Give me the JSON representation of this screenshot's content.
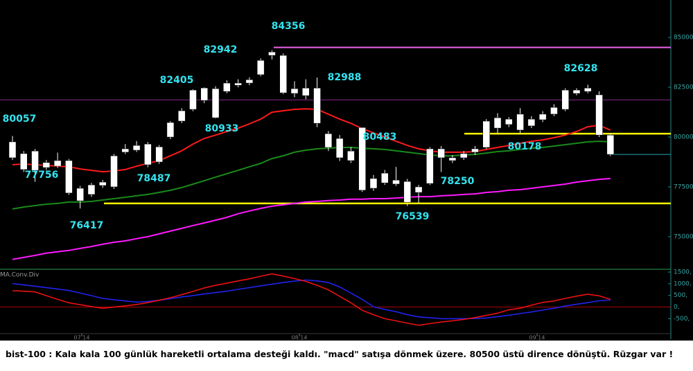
{
  "chart_data": [
    {
      "type": "candlestick",
      "open": [
        78960,
        79170,
        78330,
        78470,
        78820,
        78820,
        77430,
        77120,
        77570,
        77500,
        79240,
        79340,
        79650,
        78750,
        80000,
        80800,
        81390,
        81840,
        82430,
        82290,
        82600,
        82710,
        83130,
        84100,
        84100,
        82430,
        82080,
        82460,
        80170,
        79930,
        79300,
        77330,
        77430,
        78190,
        77640,
        77770,
        77220,
        77670,
        79410,
        78820,
        78960,
        79240,
        79480,
        80450,
        80630,
        80350,
        80560,
        80870,
        81150,
        81390,
        82190,
        82290,
        82120,
        80100
      ],
      "high": [
        80057,
        79300,
        79400,
        78850,
        79220,
        78900,
        77550,
        77700,
        77850,
        79150,
        79650,
        79800,
        79750,
        79600,
        80800,
        81450,
        82405,
        82500,
        82550,
        82850,
        82900,
        83000,
        83950,
        84356,
        84200,
        82800,
        82900,
        82988,
        80300,
        80100,
        79500,
        80483,
        78100,
        78350,
        78500,
        77900,
        77600,
        79500,
        79550,
        79100,
        79300,
        79550,
        80900,
        81200,
        81000,
        81450,
        81050,
        81300,
        81650,
        82450,
        82450,
        82628,
        82300,
        80200
      ],
      "low": [
        78850,
        78250,
        77756,
        78350,
        78450,
        77100,
        76417,
        77000,
        77450,
        77400,
        79150,
        79250,
        78487,
        78650,
        79900,
        80700,
        81300,
        81700,
        80933,
        82200,
        82500,
        82600,
        83050,
        83900,
        82150,
        82000,
        81900,
        80500,
        79300,
        78800,
        78700,
        77250,
        77300,
        77600,
        77550,
        76539,
        76700,
        77600,
        78250,
        78700,
        78850,
        79100,
        79400,
        80178,
        80500,
        80178,
        80450,
        80750,
        81050,
        81300,
        82100,
        82200,
        80000,
        79050
      ],
      "close": [
        79760,
        78370,
        79300,
        78720,
        78540,
        77190,
        76800,
        77600,
        77740,
        79060,
        79410,
        79580,
        78610,
        79510,
        80730,
        81320,
        82360,
        82465,
        80970,
        82710,
        82710,
        82880,
        83850,
        84270,
        82220,
        82190,
        82460,
        80690,
        79480,
        78960,
        78820,
        80480,
        77920,
        77700,
        77840,
        76730,
        77500,
        79410,
        78960,
        78960,
        79170,
        79410,
        80800,
        80970,
        80900,
        81150,
        80900,
        81150,
        81490,
        82360,
        82360,
        82460,
        80100,
        79130
      ],
      "candle_color": "#ffffff",
      "ylim": [
        73400,
        86880
      ],
      "yticks": [
        {
          "value": 75000,
          "label": "75000,"
        },
        {
          "value": 77500,
          "label": "77500,"
        },
        {
          "value": 80000,
          "label": "80000,"
        },
        {
          "value": 82500,
          "label": "82500,"
        },
        {
          "value": 85000,
          "label": "85000,"
        }
      ],
      "series": [
        {
          "color": "#ff1a1a",
          "values": [
            78610,
            78650,
            78610,
            78580,
            78540,
            78510,
            78400,
            78330,
            78260,
            78300,
            78370,
            78540,
            78680,
            78820,
            79060,
            79310,
            79650,
            79930,
            80100,
            80280,
            80450,
            80660,
            80900,
            81250,
            81320,
            81390,
            81420,
            81390,
            81150,
            80900,
            80690,
            80420,
            80210,
            80000,
            79790,
            79580,
            79410,
            79310,
            79240,
            79240,
            79240,
            79270,
            79380,
            79480,
            79580,
            79690,
            79790,
            79860,
            79970,
            80100,
            80280,
            80520,
            80590,
            80350
          ]
        },
        {
          "color": "#1a8a1a",
          "values": [
            76390,
            76490,
            76560,
            76630,
            76670,
            76740,
            76740,
            76770,
            76840,
            76910,
            76980,
            77050,
            77120,
            77220,
            77330,
            77470,
            77640,
            77810,
            77990,
            78160,
            78330,
            78510,
            78680,
            78920,
            79060,
            79240,
            79340,
            79410,
            79440,
            79480,
            79480,
            79440,
            79410,
            79380,
            79310,
            79240,
            79170,
            79100,
            79060,
            79060,
            79100,
            79130,
            79200,
            79270,
            79310,
            79380,
            79440,
            79480,
            79550,
            79620,
            79690,
            79760,
            79790,
            79760
          ]
        },
        {
          "color": "#ff1aff",
          "values": [
            73860,
            73960,
            74060,
            74170,
            74240,
            74310,
            74410,
            74510,
            74620,
            74720,
            74790,
            74900,
            75000,
            75140,
            75280,
            75420,
            75560,
            75690,
            75830,
            75970,
            76150,
            76290,
            76420,
            76530,
            76600,
            76670,
            76740,
            76770,
            76810,
            76840,
            76880,
            76880,
            76910,
            76910,
            76940,
            76980,
            77010,
            77010,
            77050,
            77080,
            77120,
            77150,
            77220,
            77260,
            77330,
            77360,
            77430,
            77500,
            77570,
            77640,
            77740,
            77810,
            77880,
            77920
          ]
        }
      ],
      "levels": [
        {
          "value": 84500,
          "color": "#ee66ee"
        },
        {
          "value": 81870,
          "color": "#8a2a8a"
        },
        {
          "value": 80170,
          "color": "#ffff00"
        },
        {
          "value": 76670,
          "color": "#ffff00"
        },
        {
          "value": 79130,
          "color": "#2aa8b0"
        }
      ],
      "annotations": [
        80057,
        77756,
        76417,
        78487,
        82405,
        80933,
        82942,
        84356,
        82988,
        80483,
        76539,
        78250,
        80178,
        82628
      ]
    },
    {
      "type": "line",
      "title": "MA.Conv.Div",
      "ylim": [
        -1080,
        1590
      ],
      "yticks": [
        {
          "value": -500,
          "label": "-500,"
        },
        {
          "value": 0,
          "label": "0,"
        },
        {
          "value": 500,
          "label": "500,"
        },
        {
          "value": 1000,
          "label": "1000,"
        },
        {
          "value": 1500,
          "label": "1500,"
        }
      ],
      "zero_line_color": "#b00000",
      "series": [
        {
          "color": "#2222ee",
          "values": [
            1010,
            950,
            890,
            830,
            770,
            710,
            600,
            490,
            370,
            310,
            260,
            210,
            240,
            290,
            360,
            430,
            490,
            560,
            620,
            680,
            760,
            830,
            910,
            980,
            1050,
            1110,
            1160,
            1120,
            1050,
            860,
            600,
            330,
            10,
            -100,
            -200,
            -330,
            -420,
            -460,
            -500,
            -500,
            -500,
            -490,
            -470,
            -410,
            -350,
            -280,
            -210,
            -130,
            -50,
            40,
            120,
            190,
            270,
            300
          ]
        },
        {
          "color": "#ee1111",
          "values": [
            700,
            680,
            650,
            490,
            330,
            180,
            100,
            20,
            -50,
            0,
            50,
            110,
            190,
            290,
            400,
            530,
            670,
            820,
            930,
            1020,
            1120,
            1210,
            1320,
            1420,
            1330,
            1220,
            1100,
            930,
            740,
            460,
            180,
            -140,
            -330,
            -500,
            -590,
            -690,
            -780,
            -710,
            -640,
            -590,
            -530,
            -450,
            -360,
            -260,
            -120,
            -50,
            80,
            200,
            260,
            370,
            470,
            550,
            480,
            330
          ]
        }
      ],
      "x_labels": [
        "07.14",
        "08.14",
        "09.14"
      ]
    }
  ],
  "caption": "bist-100 : Kala kala 100 günlük hareketli ortalama desteği kaldı. \"macd\" satışa dönmek üzere. 80500 üstü dirence dönüştü. Rüzgar var !"
}
